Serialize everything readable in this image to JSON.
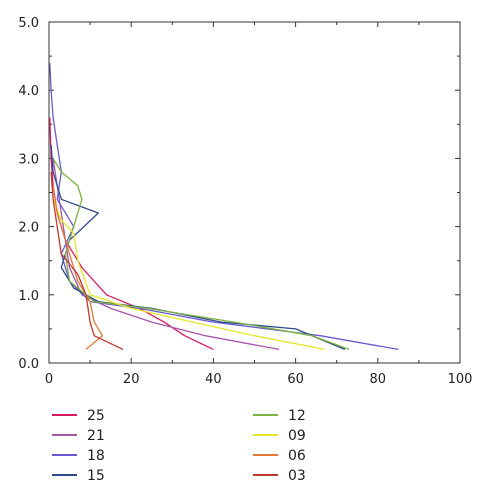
{
  "chart_data": {
    "type": "line",
    "title": "",
    "xlabel": "",
    "ylabel": "",
    "xlim": [
      0,
      100
    ],
    "ylim": [
      0,
      5
    ],
    "x_ticks": [
      0,
      20,
      40,
      60,
      80,
      100
    ],
    "x_tick_labels": [
      "0",
      "20",
      "40",
      "60",
      "80",
      "100"
    ],
    "y_ticks": [
      0,
      1,
      2,
      3,
      4,
      5
    ],
    "y_tick_labels": [
      "0.0",
      "1.0",
      "2.0",
      "3.0",
      "4.0",
      "5.0"
    ],
    "grid": false,
    "legend_position": "bottom",
    "series": [
      {
        "name": "25",
        "color": "#d81b60",
        "points": [
          [
            40,
            0.2
          ],
          [
            33,
            0.4
          ],
          [
            28,
            0.6
          ],
          [
            22,
            0.8
          ],
          [
            14,
            1.0
          ],
          [
            8,
            1.4
          ],
          [
            4,
            1.8
          ],
          [
            2,
            2.2
          ],
          [
            1,
            2.6
          ],
          [
            0.5,
            3.0
          ],
          [
            0.2,
            3.6
          ]
        ]
      },
      {
        "name": "21",
        "color": "#a855a8",
        "points": [
          [
            56,
            0.2
          ],
          [
            38,
            0.4
          ],
          [
            25,
            0.6
          ],
          [
            15,
            0.8
          ],
          [
            8,
            1.0
          ],
          [
            5,
            1.4
          ],
          [
            4,
            1.8
          ],
          [
            3,
            2.2
          ],
          [
            2,
            2.6
          ],
          [
            1,
            3.0
          ]
        ]
      },
      {
        "name": "18",
        "color": "#6a5acd",
        "points": [
          [
            85,
            0.2
          ],
          [
            66,
            0.4
          ],
          [
            40,
            0.6
          ],
          [
            22,
            0.8
          ],
          [
            10,
            0.9
          ],
          [
            5,
            1.2
          ],
          [
            3,
            1.6
          ],
          [
            6,
            2.0
          ],
          [
            2,
            2.4
          ],
          [
            3,
            2.8
          ],
          [
            2,
            3.2
          ],
          [
            1,
            3.6
          ],
          [
            0.5,
            4.0
          ],
          [
            0.2,
            4.4
          ]
        ]
      },
      {
        "name": "15",
        "color": "#2e4a8b",
        "points": [
          [
            72,
            0.2
          ],
          [
            60,
            0.5
          ],
          [
            42,
            0.6
          ],
          [
            25,
            0.8
          ],
          [
            12,
            0.9
          ],
          [
            6,
            1.1
          ],
          [
            3,
            1.4
          ],
          [
            5,
            1.8
          ],
          [
            12,
            2.2
          ],
          [
            3,
            2.4
          ],
          [
            1,
            2.8
          ],
          [
            0.5,
            3.2
          ]
        ]
      },
      {
        "name": "12",
        "color": "#7cb342",
        "points": [
          [
            73,
            0.2
          ],
          [
            64,
            0.4
          ],
          [
            45,
            0.6
          ],
          [
            24,
            0.8
          ],
          [
            11,
            0.9
          ],
          [
            5,
            1.2
          ],
          [
            4,
            1.6
          ],
          [
            6,
            2.0
          ],
          [
            8,
            2.4
          ],
          [
            7,
            2.6
          ],
          [
            3,
            2.8
          ],
          [
            1,
            3.0
          ]
        ]
      },
      {
        "name": "09",
        "color": "#e6e62a",
        "points": [
          [
            67,
            0.2
          ],
          [
            50,
            0.4
          ],
          [
            35,
            0.6
          ],
          [
            20,
            0.8
          ],
          [
            10,
            1.0
          ],
          [
            7,
            1.5
          ],
          [
            6,
            1.9
          ],
          [
            3,
            2.1
          ],
          [
            1,
            2.4
          ]
        ]
      },
      {
        "name": "06",
        "color": "#e07b39",
        "points": [
          [
            9,
            0.2
          ],
          [
            13,
            0.4
          ],
          [
            11,
            0.6
          ],
          [
            10,
            0.9
          ],
          [
            7,
            1.2
          ],
          [
            4,
            1.8
          ],
          [
            2,
            2.2
          ],
          [
            1,
            2.6
          ]
        ]
      },
      {
        "name": "03",
        "color": "#c0392b",
        "points": [
          [
            18,
            0.2
          ],
          [
            11,
            0.4
          ],
          [
            10,
            0.6
          ],
          [
            9,
            1.0
          ],
          [
            7,
            1.3
          ],
          [
            3,
            1.6
          ],
          [
            2,
            2.0
          ],
          [
            1,
            2.4
          ],
          [
            0.5,
            2.8
          ]
        ]
      }
    ]
  }
}
